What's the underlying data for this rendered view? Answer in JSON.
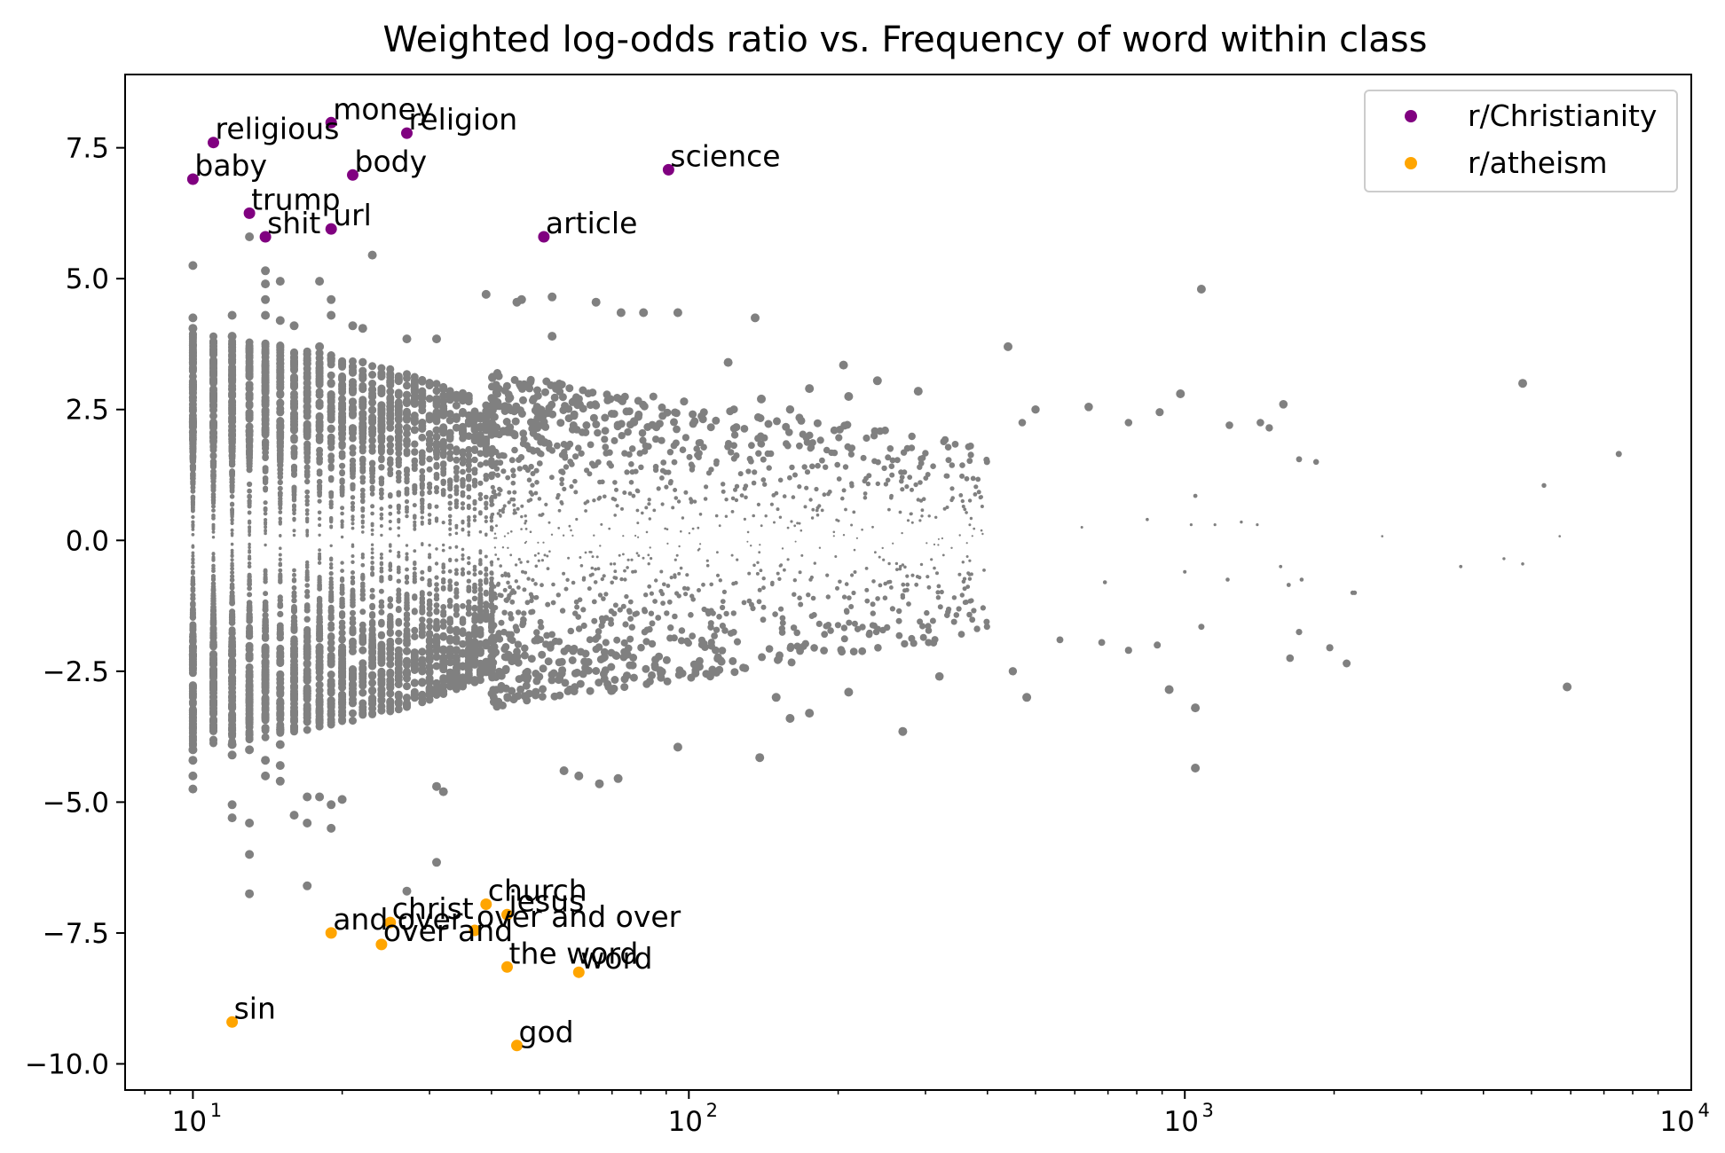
{
  "chart_data": {
    "type": "scatter",
    "title": "Weighted log-odds ratio vs. Frequency of word within class",
    "xlabel": "",
    "ylabel": "",
    "x_scale": "log",
    "xlim": [
      7.3,
      10500
    ],
    "ylim": [
      -10.5,
      8.9
    ],
    "grid": false,
    "legend_position": "top-right",
    "x_ticks": [
      {
        "value": 10,
        "base": "10",
        "exp": "1"
      },
      {
        "value": 100,
        "base": "10",
        "exp": "2"
      },
      {
        "value": 1000,
        "base": "10",
        "exp": "3"
      },
      {
        "value": 10000,
        "base": "10",
        "exp": "4"
      }
    ],
    "y_ticks": [
      {
        "value": 7.5,
        "label": "7.5"
      },
      {
        "value": 5.0,
        "label": "5.0"
      },
      {
        "value": 2.5,
        "label": "2.5"
      },
      {
        "value": 0.0,
        "label": "0.0"
      },
      {
        "value": -2.5,
        "label": "−2.5"
      },
      {
        "value": -5.0,
        "label": "−5.0"
      },
      {
        "value": -7.5,
        "label": "−7.5"
      },
      {
        "value": -10.0,
        "label": "−10.0"
      }
    ],
    "background_series": {
      "color": "#808080",
      "points": [
        [
          10,
          5.25
        ],
        [
          10,
          4.25
        ],
        [
          10,
          4.05
        ],
        [
          10,
          -4.0
        ],
        [
          10,
          -4.2
        ],
        [
          10,
          -4.5
        ],
        [
          10,
          -4.75
        ],
        [
          12,
          4.3
        ],
        [
          12,
          3.9
        ],
        [
          12,
          -3.9
        ],
        [
          12,
          -4.1
        ],
        [
          12,
          -5.05
        ],
        [
          12,
          -5.3
        ],
        [
          13,
          5.8
        ],
        [
          13,
          -5.4
        ],
        [
          13,
          -6.0
        ],
        [
          13,
          -6.75
        ],
        [
          13,
          -4.0
        ],
        [
          14,
          5.15
        ],
        [
          14,
          4.9
        ],
        [
          14,
          4.6
        ],
        [
          14,
          4.3
        ],
        [
          14,
          -4.2
        ],
        [
          14,
          -4.5
        ],
        [
          15,
          4.95
        ],
        [
          15,
          4.2
        ],
        [
          15,
          -3.9
        ],
        [
          15,
          -4.3
        ],
        [
          15,
          -4.6
        ],
        [
          16,
          4.1
        ],
        [
          16,
          -5.25
        ],
        [
          17,
          -5.4
        ],
        [
          17,
          -4.9
        ],
        [
          17,
          -6.6
        ],
        [
          18,
          4.95
        ],
        [
          18,
          3.7
        ],
        [
          18,
          -4.9
        ],
        [
          19,
          4.6
        ],
        [
          19,
          4.3
        ],
        [
          19,
          -5.05
        ],
        [
          19,
          -5.5
        ],
        [
          20,
          -4.95
        ],
        [
          21,
          4.1
        ],
        [
          22,
          4.05
        ],
        [
          23,
          5.45
        ],
        [
          27,
          3.85
        ],
        [
          31,
          3.85
        ],
        [
          27,
          -6.7
        ],
        [
          31,
          -6.15
        ],
        [
          31,
          -4.7
        ],
        [
          32,
          -4.8
        ],
        [
          39,
          4.7
        ],
        [
          45,
          4.55
        ],
        [
          46,
          4.6
        ],
        [
          53,
          4.65
        ],
        [
          53,
          3.9
        ],
        [
          65,
          4.55
        ],
        [
          73,
          4.35
        ],
        [
          81,
          4.35
        ],
        [
          95,
          4.35
        ],
        [
          136,
          4.25
        ],
        [
          120,
          3.4
        ],
        [
          56,
          -4.4
        ],
        [
          60,
          -4.5
        ],
        [
          66,
          -4.65
        ],
        [
          72,
          -4.55
        ],
        [
          95,
          -3.95
        ],
        [
          139,
          -4.15
        ],
        [
          140,
          2.7
        ],
        [
          160,
          2.5
        ],
        [
          175,
          2.9
        ],
        [
          205,
          3.35
        ],
        [
          210,
          2.75
        ],
        [
          240,
          3.05
        ],
        [
          290,
          2.85
        ],
        [
          440,
          3.7
        ],
        [
          470,
          2.25
        ],
        [
          500,
          2.5
        ],
        [
          640,
          2.55
        ],
        [
          770,
          2.25
        ],
        [
          890,
          2.45
        ],
        [
          980,
          2.8
        ],
        [
          1080,
          4.8
        ],
        [
          1230,
          2.2
        ],
        [
          1420,
          2.25
        ],
        [
          1480,
          2.15
        ],
        [
          1580,
          2.6
        ],
        [
          1700,
          1.55
        ],
        [
          1840,
          1.5
        ],
        [
          4800,
          3.0
        ],
        [
          5300,
          1.05
        ],
        [
          7500,
          1.65
        ],
        [
          450,
          -2.5
        ],
        [
          480,
          -3.0
        ],
        [
          560,
          -1.9
        ],
        [
          680,
          -1.95
        ],
        [
          770,
          -2.1
        ],
        [
          880,
          -2.0
        ],
        [
          930,
          -2.85
        ],
        [
          1050,
          -3.2
        ],
        [
          1050,
          -4.35
        ],
        [
          1080,
          -1.65
        ],
        [
          1630,
          -2.25
        ],
        [
          1700,
          -1.75
        ],
        [
          1960,
          -2.05
        ],
        [
          2120,
          -2.35
        ],
        [
          2200,
          -1.0
        ],
        [
          5900,
          -2.8
        ],
        [
          270,
          -3.65
        ],
        [
          210,
          -2.9
        ],
        [
          175,
          -3.3
        ],
        [
          160,
          -3.4
        ],
        [
          150,
          -3.0
        ],
        [
          320,
          -2.6
        ],
        [
          4400,
          -0.35
        ],
        [
          4800,
          -0.45
        ],
        [
          3600,
          -0.5
        ],
        [
          2500,
          0.08
        ],
        [
          5700,
          0.08
        ],
        [
          1300,
          0.35
        ],
        [
          1400,
          0.3
        ],
        [
          1150,
          0.3
        ],
        [
          1050,
          0.85
        ],
        [
          1030,
          0.3
        ],
        [
          1000,
          -0.6
        ],
        [
          840,
          0.4
        ],
        [
          620,
          0.25
        ],
        [
          690,
          -0.8
        ],
        [
          1220,
          -0.75
        ],
        [
          1620,
          -0.85
        ],
        [
          1720,
          -0.75
        ],
        [
          1560,
          -0.5
        ],
        [
          2180,
          -1.0
        ]
      ]
    },
    "series": [
      {
        "name": "r/Christianity",
        "color": "#800080",
        "points": [
          {
            "x": 19,
            "y": 7.98,
            "label": "money"
          },
          {
            "x": 11,
            "y": 7.6,
            "label": "religious"
          },
          {
            "x": 27,
            "y": 7.78,
            "label": "religion"
          },
          {
            "x": 10,
            "y": 6.9,
            "label": "baby"
          },
          {
            "x": 21,
            "y": 6.98,
            "label": "body"
          },
          {
            "x": 91,
            "y": 7.08,
            "label": "science"
          },
          {
            "x": 13,
            "y": 6.25,
            "label": "trump"
          },
          {
            "x": 14,
            "y": 5.8,
            "label": "shit"
          },
          {
            "x": 19,
            "y": 5.95,
            "label": "url"
          },
          {
            "x": 51,
            "y": 5.8,
            "label": "article"
          }
        ]
      },
      {
        "name": "r/atheism",
        "color": "#FFA500",
        "points": [
          {
            "x": 39,
            "y": -6.95,
            "label": "church"
          },
          {
            "x": 43,
            "y": -7.15,
            "label": "jesus"
          },
          {
            "x": 25,
            "y": -7.3,
            "label": "christ"
          },
          {
            "x": 19,
            "y": -7.5,
            "label": "and over"
          },
          {
            "x": 37,
            "y": -7.45,
            "label": "over and over"
          },
          {
            "x": 24,
            "y": -7.72,
            "label": "over and"
          },
          {
            "x": 43,
            "y": -8.15,
            "label": "the word"
          },
          {
            "x": 60,
            "y": -8.25,
            "label": "word"
          },
          {
            "x": 12,
            "y": -9.2,
            "label": "sin"
          },
          {
            "x": 45,
            "y": -9.65,
            "label": "god"
          }
        ]
      }
    ]
  }
}
